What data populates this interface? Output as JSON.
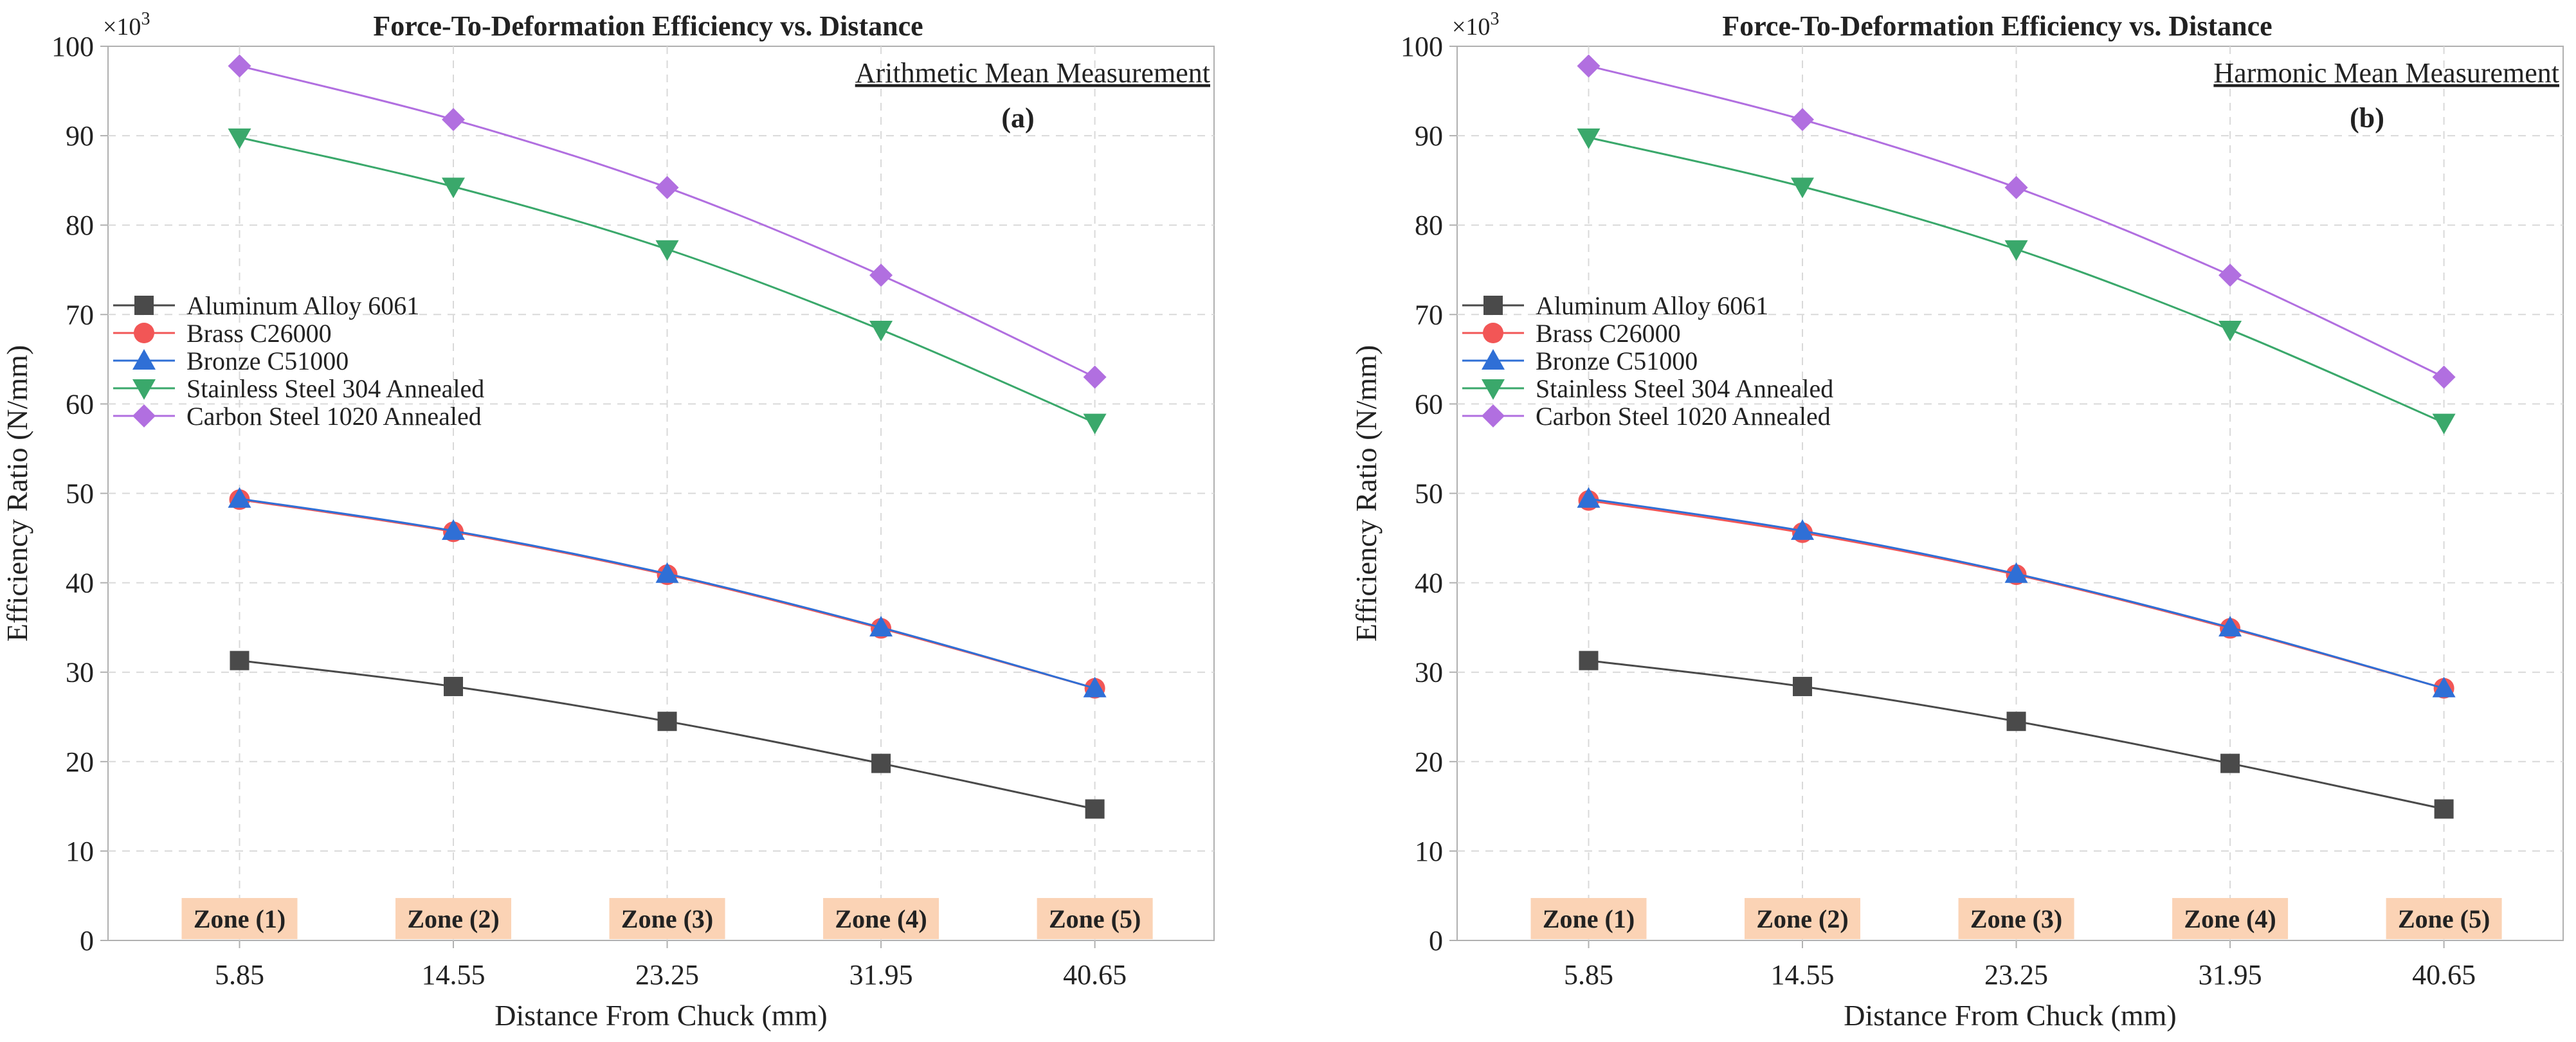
{
  "colors": {
    "aluminum": "#4a4a4a",
    "brass": "#f25656",
    "bronze": "#2f6fd6",
    "stainless": "#3aa86b",
    "carbon": "#b16fe0",
    "zone_bg": "#fbd3b5",
    "grid": "#d9d9d9",
    "axis": "#b0b0b0"
  },
  "chart_data": [
    {
      "type": "line",
      "id": "a",
      "title": "Force-To-Deformation Efficiency vs. Distance",
      "annotation": "Arithmetic Mean Measurement",
      "panel_tag": "(a)",
      "xlabel": "Distance From Chuck (mm)",
      "ylabel": "Efficiency Ratio (N/mm)",
      "y_multiplier_base": "×10",
      "y_multiplier_exp": "3",
      "x": [
        5.85,
        14.55,
        23.25,
        31.95,
        40.65
      ],
      "x_tick_labels": [
        "5.85",
        "14.55",
        "23.25",
        "31.95",
        "40.65"
      ],
      "xlim": [
        0.5,
        45.5
      ],
      "ylim": [
        0,
        100
      ],
      "y_ticks": [
        0,
        10,
        20,
        30,
        40,
        50,
        60,
        70,
        80,
        90,
        100
      ],
      "grid": true,
      "legend_position": "center-left",
      "zones": [
        "Zone (1)",
        "Zone (2)",
        "Zone (3)",
        "Zone (4)",
        "Zone (5)"
      ],
      "series": [
        {
          "name": "Aluminum Alloy 6061",
          "color_key": "aluminum",
          "marker": "square",
          "values": [
            31.3,
            28.4,
            24.5,
            19.8,
            14.7
          ]
        },
        {
          "name": "Brass C26000",
          "color_key": "brass",
          "marker": "circle",
          "values": [
            49.3,
            45.7,
            40.9,
            34.9,
            28.2
          ]
        },
        {
          "name": "Bronze C51000",
          "color_key": "bronze",
          "marker": "triangle-up",
          "values": [
            49.4,
            45.8,
            41.0,
            35.0,
            28.2
          ]
        },
        {
          "name": "Stainless Steel 304 Annealed",
          "color_key": "stainless",
          "marker": "triangle-down",
          "values": [
            89.8,
            84.3,
            77.3,
            68.3,
            57.9
          ]
        },
        {
          "name": "Carbon Steel 1020 Annealed",
          "color_key": "carbon",
          "marker": "diamond",
          "values": [
            97.8,
            91.8,
            84.2,
            74.4,
            63.0
          ]
        }
      ]
    },
    {
      "type": "line",
      "id": "b",
      "title": "Force-To-Deformation Efficiency vs. Distance",
      "annotation": "Harmonic Mean Measurement",
      "panel_tag": "(b)",
      "xlabel": "Distance From Chuck (mm)",
      "ylabel": "Efficiency Ratio (N/mm)",
      "y_multiplier_base": "×10",
      "y_multiplier_exp": "3",
      "x": [
        5.85,
        14.55,
        23.25,
        31.95,
        40.65
      ],
      "x_tick_labels": [
        "5.85",
        "14.55",
        "23.25",
        "31.95",
        "40.65"
      ],
      "xlim": [
        0.5,
        45.5
      ],
      "ylim": [
        0,
        100
      ],
      "y_ticks": [
        0,
        10,
        20,
        30,
        40,
        50,
        60,
        70,
        80,
        90,
        100
      ],
      "grid": true,
      "legend_position": "center-left",
      "zones": [
        "Zone (1)",
        "Zone (2)",
        "Zone (3)",
        "Zone (4)",
        "Zone (5)"
      ],
      "series": [
        {
          "name": "Aluminum Alloy 6061",
          "color_key": "aluminum",
          "marker": "square",
          "values": [
            31.3,
            28.4,
            24.5,
            19.8,
            14.7
          ]
        },
        {
          "name": "Brass C26000",
          "color_key": "brass",
          "marker": "circle",
          "values": [
            49.2,
            45.6,
            40.9,
            34.9,
            28.2
          ]
        },
        {
          "name": "Bronze C51000",
          "color_key": "bronze",
          "marker": "triangle-up",
          "values": [
            49.4,
            45.8,
            41.0,
            35.0,
            28.2
          ]
        },
        {
          "name": "Stainless Steel 304 Annealed",
          "color_key": "stainless",
          "marker": "triangle-down",
          "values": [
            89.8,
            84.3,
            77.3,
            68.3,
            57.9
          ]
        },
        {
          "name": "Carbon Steel 1020 Annealed",
          "color_key": "carbon",
          "marker": "diamond",
          "values": [
            97.8,
            91.8,
            84.2,
            74.4,
            63.0
          ]
        }
      ]
    }
  ]
}
